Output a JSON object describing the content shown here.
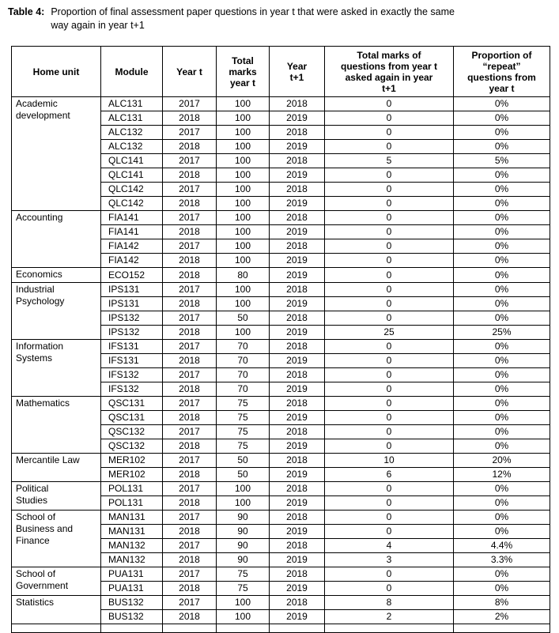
{
  "caption": {
    "label": "Table 4:",
    "text": "Proportion of final assessment paper questions in year t that were asked in exactly the same\nway again in year t+1"
  },
  "table": {
    "headers": [
      "Home unit",
      "Module",
      "Year t",
      "Total\nmarks\nyear t",
      "Year\nt+1",
      "Total marks of\nquestions from year t\nasked again in year\nt+1",
      "Proportion of\n“repeat”\nquestions from\nyear t"
    ],
    "columns": [
      "home_unit",
      "module",
      "year_t",
      "total_marks_year_t",
      "year_t_plus_1",
      "marks_repeated",
      "proportion_repeat"
    ],
    "sections": [
      {
        "home_unit": "Academic\ndevelopment",
        "rows": [
          [
            "ALC131",
            "2017",
            "100",
            "2018",
            "0",
            "0%"
          ],
          [
            "ALC131",
            "2018",
            "100",
            "2019",
            "0",
            "0%"
          ],
          [
            "ALC132",
            "2017",
            "100",
            "2018",
            "0",
            "0%"
          ],
          [
            "ALC132",
            "2018",
            "100",
            "2019",
            "0",
            "0%"
          ],
          [
            "QLC141",
            "2017",
            "100",
            "2018",
            "5",
            "5%"
          ],
          [
            "QLC141",
            "2018",
            "100",
            "2019",
            "0",
            "0%"
          ],
          [
            "QLC142",
            "2017",
            "100",
            "2018",
            "0",
            "0%"
          ],
          [
            "QLC142",
            "2018",
            "100",
            "2019",
            "0",
            "0%"
          ]
        ]
      },
      {
        "home_unit": "Accounting",
        "rows": [
          [
            "FIA141",
            "2017",
            "100",
            "2018",
            "0",
            "0%"
          ],
          [
            "FIA141",
            "2018",
            "100",
            "2019",
            "0",
            "0%"
          ],
          [
            "FIA142",
            "2017",
            "100",
            "2018",
            "0",
            "0%"
          ],
          [
            "FIA142",
            "2018",
            "100",
            "2019",
            "0",
            "0%"
          ]
        ]
      },
      {
        "home_unit": "Economics",
        "rows": [
          [
            "ECO152",
            "2018",
            "80",
            "2019",
            "0",
            "0%"
          ]
        ]
      },
      {
        "home_unit": "Industrial\nPsychology",
        "rows": [
          [
            "IPS131",
            "2017",
            "100",
            "2018",
            "0",
            "0%"
          ],
          [
            "IPS131",
            "2018",
            "100",
            "2019",
            "0",
            "0%"
          ],
          [
            "IPS132",
            "2017",
            "50",
            "2018",
            "0",
            "0%"
          ],
          [
            "IPS132",
            "2018",
            "100",
            "2019",
            "25",
            "25%"
          ]
        ]
      },
      {
        "home_unit": "Information\nSystems",
        "rows": [
          [
            "IFS131",
            "2017",
            "70",
            "2018",
            "0",
            "0%"
          ],
          [
            "IFS131",
            "2018",
            "70",
            "2019",
            "0",
            "0%"
          ],
          [
            "IFS132",
            "2017",
            "70",
            "2018",
            "0",
            "0%"
          ],
          [
            "IFS132",
            "2018",
            "70",
            "2019",
            "0",
            "0%"
          ]
        ]
      },
      {
        "home_unit": "Mathematics",
        "rows": [
          [
            "QSC131",
            "2017",
            "75",
            "2018",
            "0",
            "0%"
          ],
          [
            "QSC131",
            "2018",
            "75",
            "2019",
            "0",
            "0%"
          ],
          [
            "QSC132",
            "2017",
            "75",
            "2018",
            "0",
            "0%"
          ],
          [
            "QSC132",
            "2018",
            "75",
            "2019",
            "0",
            "0%"
          ]
        ]
      },
      {
        "home_unit": "Mercantile Law",
        "rows": [
          [
            "MER102",
            "2017",
            "50",
            "2018",
            "10",
            "20%"
          ],
          [
            "MER102",
            "2018",
            "50",
            "2019",
            "6",
            "12%"
          ]
        ]
      },
      {
        "home_unit": "Political\nStudies",
        "rows": [
          [
            "POL131",
            "2017",
            "100",
            "2018",
            "0",
            "0%"
          ],
          [
            "POL131",
            "2018",
            "100",
            "2019",
            "0",
            "0%"
          ]
        ]
      },
      {
        "home_unit": "School of\nBusiness and\nFinance",
        "rows": [
          [
            "MAN131",
            "2017",
            "90",
            "2018",
            "0",
            "0%"
          ],
          [
            "MAN131",
            "2018",
            "90",
            "2019",
            "0",
            "0%"
          ],
          [
            "MAN132",
            "2017",
            "90",
            "2018",
            "4",
            "4.4%"
          ],
          [
            "MAN132",
            "2018",
            "90",
            "2019",
            "3",
            "3.3%"
          ]
        ]
      },
      {
        "home_unit": "School of\nGovernment",
        "rows": [
          [
            "PUA131",
            "2017",
            "75",
            "2018",
            "0",
            "0%"
          ],
          [
            "PUA131",
            "2018",
            "75",
            "2019",
            "0",
            "0%"
          ]
        ]
      },
      {
        "home_unit": "Statistics",
        "rows": [
          [
            "BUS132",
            "2017",
            "100",
            "2018",
            "8",
            "8%"
          ],
          [
            "BUS132",
            "2018",
            "100",
            "2019",
            "2",
            "2%"
          ]
        ]
      }
    ]
  }
}
